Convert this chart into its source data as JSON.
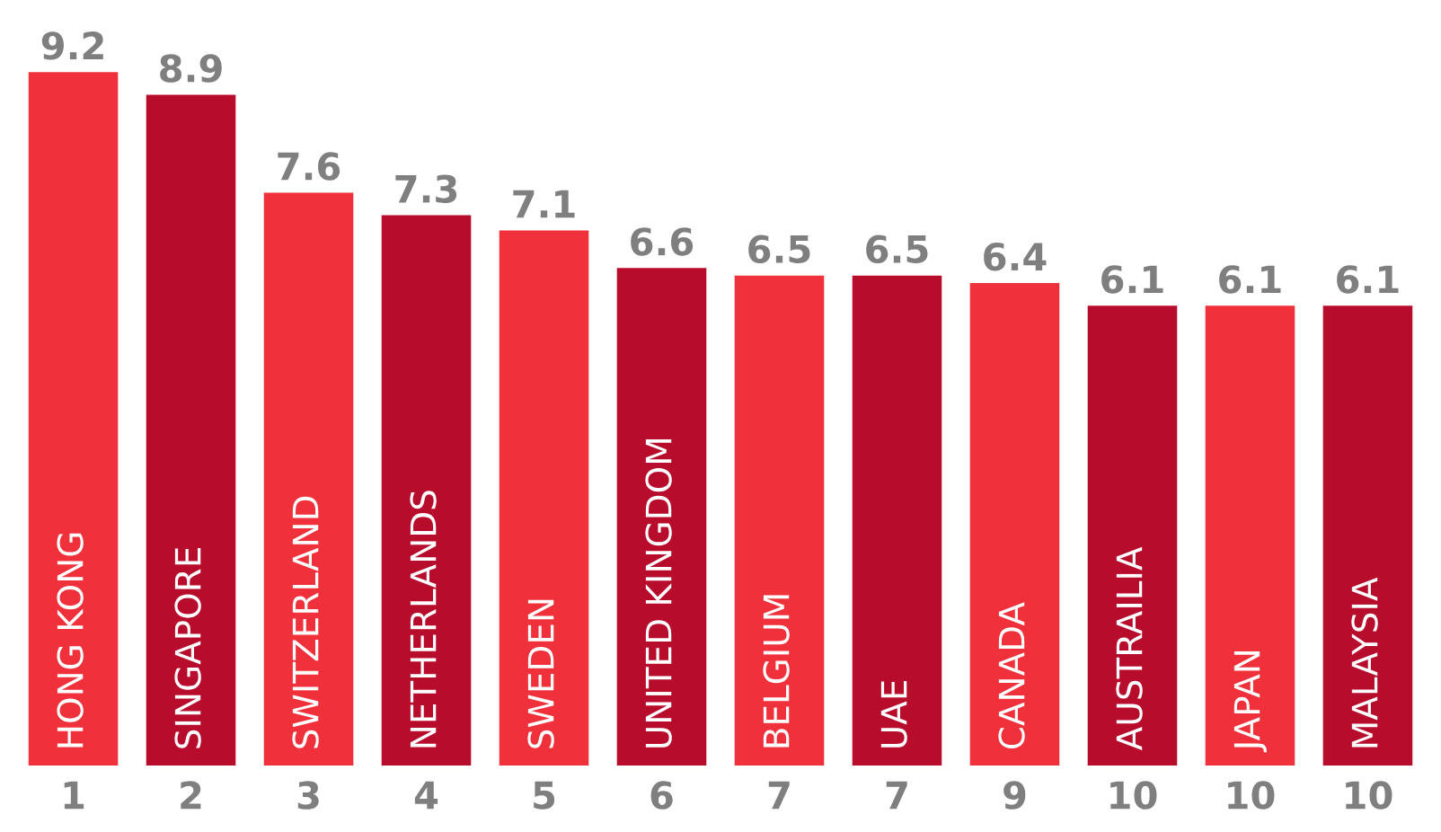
{
  "chart_data": {
    "type": "bar",
    "categories": [
      "HONG KONG",
      "SINGAPORE",
      "SWITZERLAND",
      "NETHERLANDS",
      "SWEDEN",
      "UNITED KINGDOM",
      "BELGIUM",
      "UAE",
      "CANADA",
      "AUSTRAILIA",
      "JAPAN",
      "MALAYSIA"
    ],
    "values": [
      9.2,
      8.9,
      7.6,
      7.3,
      7.1,
      6.6,
      6.5,
      6.5,
      6.4,
      6.1,
      6.1,
      6.1
    ],
    "colors": [
      "#f0303a",
      "#b80c2c",
      "#f0303a",
      "#b80c2c",
      "#f0303a",
      "#b80c2c",
      "#f0303a",
      "#b80c2c",
      "#f0303a",
      "#b80c2c",
      "#f0303a",
      "#b80c2c"
    ],
    "data_labels": true,
    "annotations": [
      "1",
      "2",
      "3",
      "4",
      "5",
      "6",
      "7",
      "7",
      "9",
      "10",
      "10",
      "10"
    ]
  }
}
